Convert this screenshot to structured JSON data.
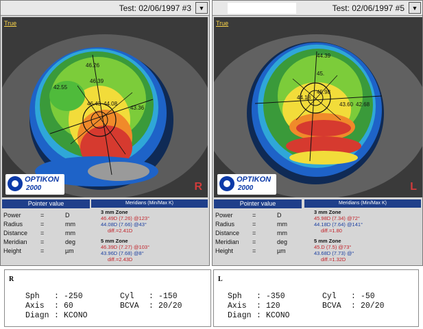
{
  "right_panel": {
    "title": "Test: 02/06/1997 #3",
    "true_label": "True",
    "eye_letter": "R",
    "map_values": [
      "46.26",
      "42.55",
      "46.39",
      "46.43",
      "44.08",
      "43.36"
    ],
    "logo_brand": "OPTIKON",
    "logo_year": "2000",
    "pointer_header": "Pointer value",
    "meridians_header": "Meridians (Min/Max K)",
    "pointer_rows": [
      {
        "label": "Power",
        "eq": "=",
        "unit": "D"
      },
      {
        "label": "Radius",
        "eq": "=",
        "unit": "mm"
      },
      {
        "label": "Distance",
        "eq": "=",
        "unit": "mm"
      },
      {
        "label": "Meridian",
        "eq": "=",
        "unit": "deg"
      },
      {
        "label": "Height",
        "eq": "=",
        "unit": "µm"
      }
    ],
    "zone3": {
      "title": "3 mm Zone",
      "max": "46.49D (7.26) @123°",
      "min": "44.08D (7.66) @43°",
      "diff": "diff.=2.41D"
    },
    "zone5": {
      "title": "5 mm Zone",
      "max": "46.39D (7.27) @103°",
      "min": "43.96D (7.68) @8°",
      "diff": "diff.=2.43D"
    }
  },
  "left_panel": {
    "title": "Test: 02/06/1997 #5",
    "true_label": "True",
    "eye_letter": "L",
    "map_values": [
      "44.39",
      "45.",
      "45.98",
      "44.18",
      "43.60",
      "42.68"
    ],
    "logo_brand": "OPTIKON",
    "logo_year": "2000",
    "pointer_header": "Pointer value",
    "meridians_header": "Meridians (Min/Max K)",
    "pointer_rows": [
      {
        "label": "Power",
        "eq": "=",
        "unit": "D"
      },
      {
        "label": "Radius",
        "eq": "=",
        "unit": "mm"
      },
      {
        "label": "Distance",
        "eq": "=",
        "unit": "mm"
      },
      {
        "label": "Meridian",
        "eq": "=",
        "unit": "deg"
      },
      {
        "label": "Height",
        "eq": "=",
        "unit": "µm"
      }
    ],
    "zone3": {
      "title": "3 mm Zone",
      "max": "45.98D (7.34) @72°",
      "min": "44.18D (7.64) @141°",
      "diff": "diff.=1.80"
    },
    "zone5": {
      "title": "5 mm Zone",
      "max": "45.D (7.5) @73°",
      "min": "43.68D (7.73) @°",
      "diff": "diff.=1.32D"
    }
  },
  "rx_right": {
    "side": "R",
    "sph_label": "Sph",
    "sph_sep": ":",
    "sph": "-250",
    "cyl_label": "Cyl",
    "cyl_sep": ":",
    "cyl": "-150",
    "axis_label": "Axis",
    "axis_sep": ":",
    "axis": "60",
    "bcva_label": "BCVA",
    "bcva_sep": ":",
    "bcva": "20/20",
    "diagn_label": "Diagn",
    "diagn_sep": ":",
    "diagn": "KCONO"
  },
  "rx_left": {
    "side": "L",
    "sph_label": "Sph",
    "sph_sep": ":",
    "sph": "-350",
    "cyl_label": "Cyl",
    "cyl_sep": ":",
    "cyl": "-50",
    "axis_label": "Axis",
    "axis_sep": ":",
    "axis": "120",
    "bcva_label": "BCVA",
    "bcva_sep": ":",
    "bcva": "20/20",
    "diagn_label": "Diagn",
    "diagn_sep": ":",
    "diagn": "KCONO"
  },
  "colors": {
    "map_red": "#d63a2f",
    "map_yellow": "#f2dc3a",
    "map_green": "#4fbb3b",
    "map_blue": "#1e63c8",
    "header_blue": "#1f3f8a"
  }
}
